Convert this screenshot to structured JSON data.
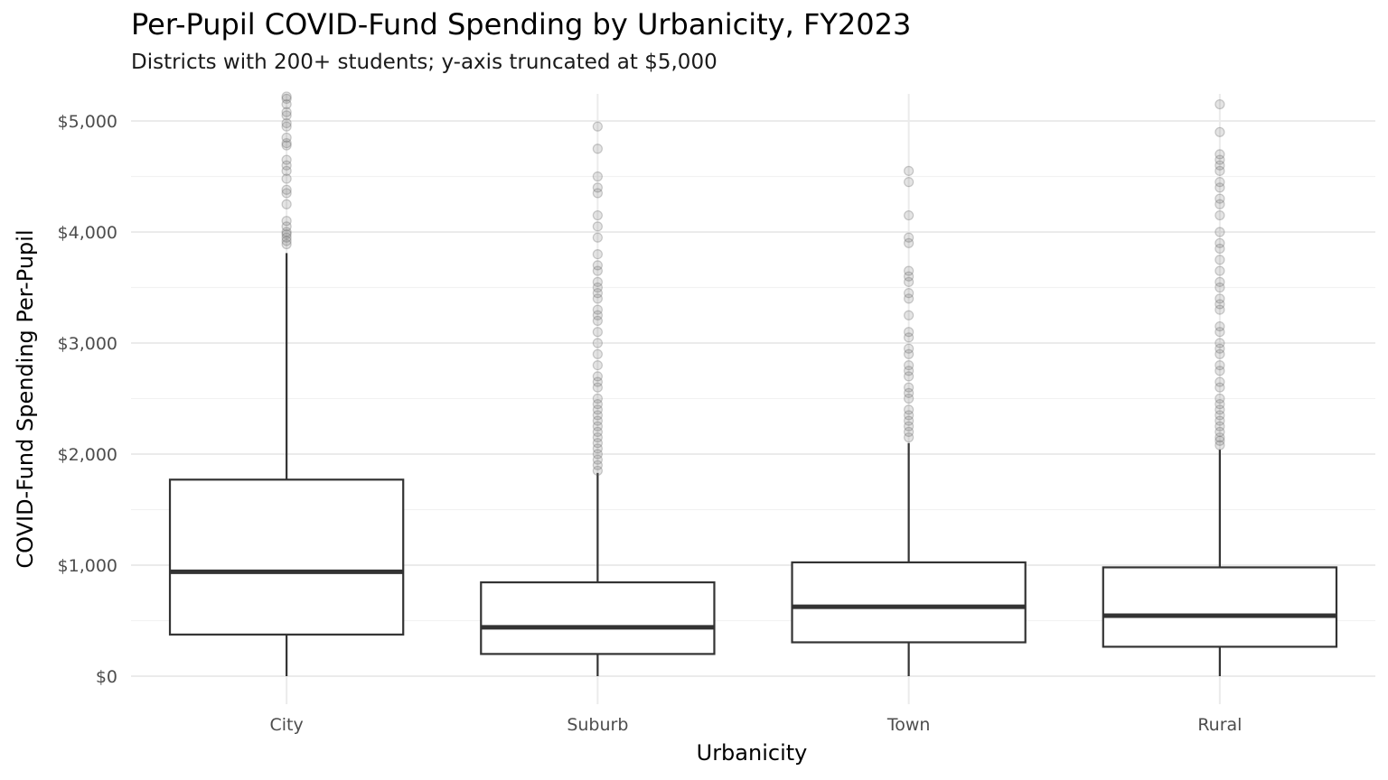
{
  "chart_data": {
    "type": "box",
    "title": "Per-Pupil COVID-Fund Spending by Urbanicity, FY2023",
    "subtitle": "Districts with 200+ students; y-axis truncated at $5,000",
    "xlabel": "Urbanicity",
    "ylabel": "COVID-Fund Spending Per-Pupil",
    "ylim": [
      -250,
      5250
    ],
    "y_ticks": [
      0,
      1000,
      2000,
      3000,
      4000,
      5000
    ],
    "y_tick_labels": [
      "$0",
      "$1,000",
      "$2,000",
      "$3,000",
      "$4,000",
      "$5,000"
    ],
    "grid": true,
    "categories": [
      "City",
      "Suburb",
      "Town",
      "Rural"
    ],
    "boxes": [
      {
        "category": "City",
        "min": 0,
        "q1": 375,
        "median": 940,
        "q3": 1770,
        "whisker_high": 3810,
        "outliers": [
          3890,
          3920,
          3950,
          3980,
          4000,
          4050,
          4100,
          4250,
          4350,
          4380,
          4480,
          4550,
          4600,
          4650,
          4780,
          4800,
          4850,
          4950,
          4980,
          5050,
          5080,
          5150,
          5200,
          5220
        ]
      },
      {
        "category": "Suburb",
        "min": 0,
        "q1": 200,
        "median": 440,
        "q3": 845,
        "whisker_high": 1830,
        "outliers": [
          1850,
          1900,
          1950,
          2000,
          2050,
          2100,
          2150,
          2200,
          2250,
          2300,
          2350,
          2400,
          2450,
          2500,
          2600,
          2650,
          2700,
          2800,
          2900,
          3000,
          3100,
          3200,
          3250,
          3300,
          3400,
          3450,
          3500,
          3550,
          3650,
          3700,
          3800,
          3950,
          4050,
          4150,
          4350,
          4400,
          4500,
          4750,
          4950
        ]
      },
      {
        "category": "Town",
        "min": 0,
        "q1": 305,
        "median": 625,
        "q3": 1025,
        "whisker_high": 2100,
        "outliers": [
          2150,
          2200,
          2250,
          2300,
          2350,
          2400,
          2500,
          2550,
          2600,
          2700,
          2750,
          2800,
          2900,
          2950,
          3050,
          3100,
          3250,
          3400,
          3450,
          3550,
          3600,
          3650,
          3900,
          3950,
          4150,
          4450,
          4550
        ]
      },
      {
        "category": "Rural",
        "min": 0,
        "q1": 265,
        "median": 545,
        "q3": 980,
        "whisker_high": 2040,
        "outliers": [
          2080,
          2120,
          2150,
          2200,
          2250,
          2300,
          2350,
          2400,
          2450,
          2500,
          2600,
          2650,
          2750,
          2800,
          2900,
          2950,
          3000,
          3100,
          3150,
          3300,
          3350,
          3400,
          3500,
          3550,
          3650,
          3750,
          3850,
          3900,
          4000,
          4150,
          4250,
          4300,
          4400,
          4450,
          4550,
          4600,
          4650,
          4700,
          4900,
          5150
        ]
      }
    ]
  }
}
